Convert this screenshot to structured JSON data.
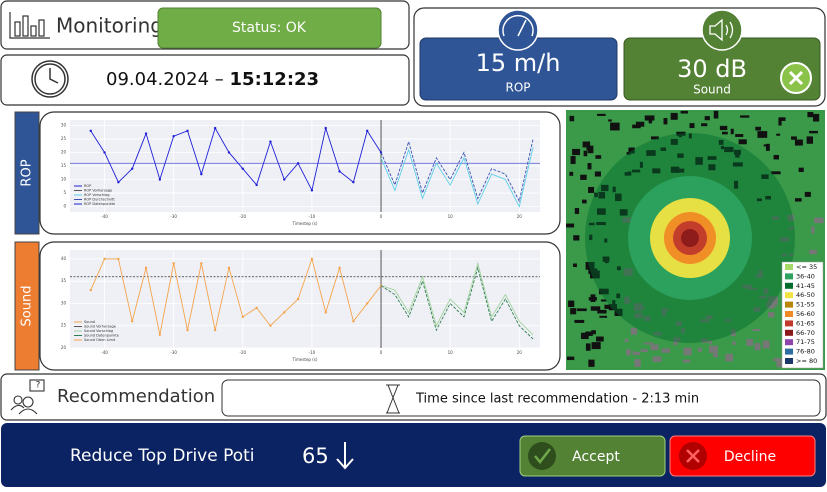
{
  "header": {
    "title": "Monitoring",
    "status": "Status: OK",
    "date": "09.04.2024",
    "separator": "–",
    "time": "15:12:23"
  },
  "kpis": [
    {
      "value": "15 m/h",
      "label": "ROP",
      "color": "#2f5597"
    },
    {
      "value": "30 dB",
      "label": "Sound",
      "color": "#548235"
    }
  ],
  "charts": [
    {
      "tab": "ROP",
      "tab_color": "#2f5597",
      "x_label": "Timestep (s)",
      "xlim": [
        -45,
        23
      ],
      "xticks": [
        -40,
        -30,
        -20,
        -10,
        0,
        10,
        20
      ],
      "ylim": [
        -2,
        32
      ],
      "yticks": [
        0,
        5,
        10,
        15,
        20,
        25,
        30
      ],
      "reference": 16,
      "legend": [
        "ROP",
        "ROP Vorhersage",
        "ROP Vorschlag",
        "ROP Durchschnitt",
        "ROP Datenpunkte"
      ],
      "history": {
        "color": "#1f1fd6",
        "x": [
          -42,
          -40,
          -38,
          -36,
          -34,
          -32,
          -30,
          -28,
          -26,
          -24,
          -22,
          -20,
          -18,
          -16,
          -14,
          -12,
          -10,
          -8,
          -6,
          -4,
          -2,
          0
        ],
        "values": [
          28,
          20,
          9,
          14,
          27,
          10,
          26,
          28,
          12,
          29,
          20,
          14,
          8,
          24,
          10,
          16,
          6,
          29,
          13,
          9,
          28,
          20
        ]
      },
      "forecast": {
        "color": "#3a4fb0",
        "x": [
          0,
          2,
          4,
          6,
          8,
          10,
          12,
          14,
          16,
          18,
          20,
          22
        ],
        "values": [
          20,
          8,
          24,
          5,
          18,
          10,
          20,
          3,
          14,
          12,
          2,
          25
        ]
      },
      "suggestion": {
        "color": "#5fd0e6",
        "x": [
          0,
          2,
          4,
          6,
          8,
          10,
          12,
          14,
          16,
          18,
          20,
          22
        ],
        "values": [
          18,
          6,
          21,
          3,
          16,
          8,
          18,
          1,
          12,
          10,
          0,
          22
        ]
      }
    },
    {
      "tab": "Sound",
      "tab_color": "#ed7d31",
      "x_label": "Timestep (s)",
      "xlim": [
        -45,
        23
      ],
      "xticks": [
        -40,
        -30,
        -20,
        -10,
        0,
        10,
        20
      ],
      "ylim": [
        20,
        42
      ],
      "yticks": [
        20,
        25,
        30,
        35,
        40
      ],
      "reference": 36,
      "legend": [
        "Sound",
        "Sound Vorhersage",
        "Sound Vorschlag",
        "Sound Datenpunkte",
        "Sound Oben Limit"
      ],
      "history": {
        "color": "#f5a34a",
        "x": [
          -42,
          -40,
          -38,
          -36,
          -34,
          -32,
          -30,
          -28,
          -26,
          -24,
          -22,
          -20,
          -18,
          -16,
          -14,
          -12,
          -10,
          -8,
          -6,
          -4,
          -2,
          0
        ],
        "values": [
          33,
          40,
          40,
          26,
          38,
          23,
          39,
          24,
          39,
          24,
          38,
          27,
          29,
          25,
          28,
          31,
          40,
          28,
          38,
          26,
          30,
          34
        ]
      },
      "forecast": {
        "color": "#2e7d4f",
        "x": [
          0,
          2,
          4,
          6,
          8,
          10,
          12,
          14,
          16,
          18,
          20,
          22
        ],
        "values": [
          34,
          32,
          27,
          35,
          24,
          30,
          27,
          38,
          26,
          31,
          25,
          22
        ]
      },
      "suggestion": {
        "color": "#a3d39c",
        "x": [
          0,
          2,
          4,
          6,
          8,
          10,
          12,
          14,
          16,
          18,
          20,
          22
        ],
        "values": [
          34,
          33,
          28,
          36,
          25,
          31,
          28,
          39,
          27,
          32,
          26,
          23
        ]
      }
    }
  ],
  "map": {
    "legend": [
      {
        "label": "<= 35",
        "color": "#a6d96a"
      },
      {
        "label": "36-40",
        "color": "#2ca25f"
      },
      {
        "label": "41-45",
        "color": "#006d2c"
      },
      {
        "label": "46-50",
        "color": "#f0e442"
      },
      {
        "label": "51-55",
        "color": "#b8860b"
      },
      {
        "label": "56-60",
        "color": "#f08a24"
      },
      {
        "label": "61-65",
        "color": "#c0392b"
      },
      {
        "label": "66-70",
        "color": "#8b1a1a"
      },
      {
        "label": "71-75",
        "color": "#8e44ad"
      },
      {
        "label": "76-80",
        "color": "#2e6da4"
      },
      {
        "label": ">= 80",
        "color": "#1b3a6b"
      }
    ]
  },
  "recommendation": {
    "title": "Recommendation",
    "time_since": "Time since last recommendation - 2:13 min",
    "action": "Reduce Top Drive Poti",
    "value": 65,
    "accept": "Accept",
    "decline": "Decline"
  }
}
